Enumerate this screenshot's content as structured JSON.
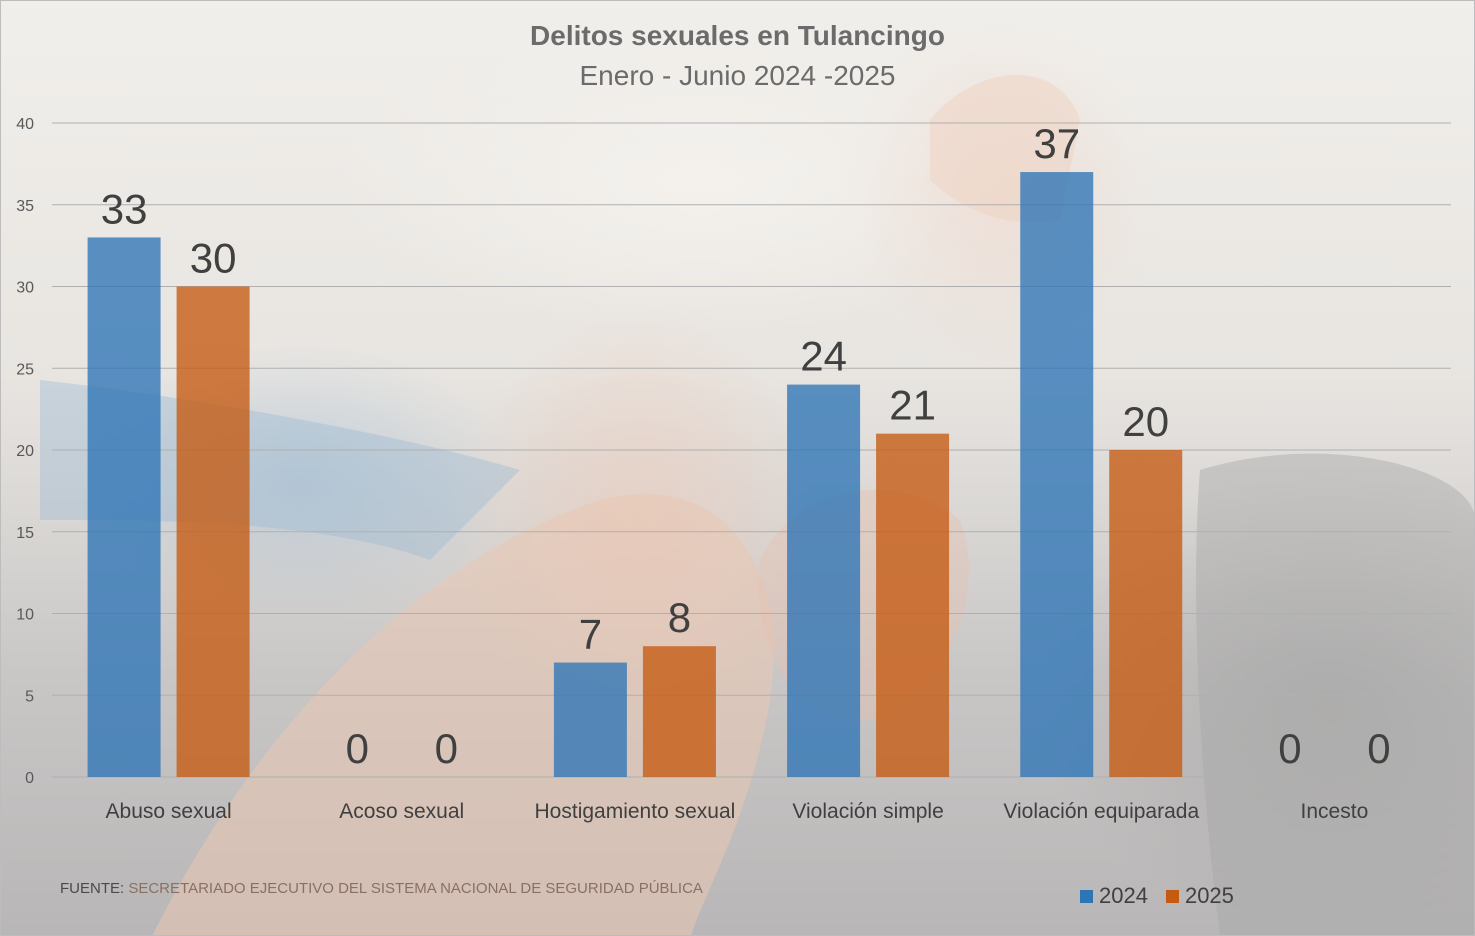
{
  "chart_data": {
    "type": "bar",
    "title": "Delitos sexuales en Tulancingo",
    "subtitle": "Enero - Junio 2024 -2025",
    "categories": [
      "Abuso sexual",
      "Acoso sexual",
      "Hostigamiento sexual",
      "Violación simple",
      "Violación equiparada",
      "Incesto"
    ],
    "series": [
      {
        "name": "2024",
        "values": [
          33,
          0,
          7,
          24,
          37,
          0
        ],
        "color": "#2e75b6"
      },
      {
        "name": "2025",
        "values": [
          30,
          0,
          8,
          21,
          20,
          0
        ],
        "color": "#c55a11"
      }
    ],
    "ylim": [
      0,
      40
    ],
    "yticks": [
      0,
      5,
      10,
      15,
      20,
      25,
      30,
      35,
      40
    ],
    "grid": true,
    "legend_position": "bottom-right",
    "data_labels": true
  },
  "source": {
    "label": "FUENTE:",
    "text": " SECRETARIADO EJECUTIVO DEL SISTEMA NACIONAL DE SEGURIDAD PÚBLICA"
  }
}
